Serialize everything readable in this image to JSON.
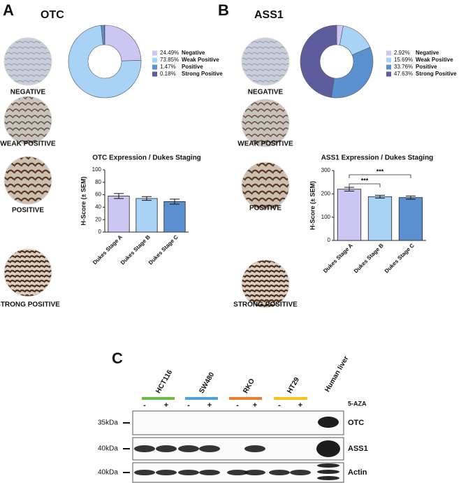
{
  "panels": [
    {
      "label": "A",
      "title": "OTC",
      "tissue_labels": [
        "NEGATIVE",
        "WEAK POSITIVE",
        "POSITIVE",
        "STRONG POSITIVE"
      ]
    },
    {
      "label": "B",
      "title": "ASS1",
      "tissue_labels": [
        "NEGATIVE",
        "WEAK POSITIVE",
        "POSITIVE",
        "STRONG POSITIVE"
      ]
    }
  ],
  "chart_data": [
    {
      "type": "pie",
      "categories": [
        "Negative",
        "Weak Positive",
        "Positive",
        "Strong Positive"
      ],
      "values": [
        24.49,
        73.85,
        1.47,
        0.18
      ],
      "value_labels": [
        "24.49%",
        "73.85%",
        "1.47%",
        "0.18%"
      ],
      "colors": [
        "#cbc7f2",
        "#a8d3f7",
        "#5b90d0",
        "#5d5c9c"
      ]
    },
    {
      "type": "bar",
      "title": "OTC Expression / Dukes Staging",
      "y_label": "H-Score (± SEM)",
      "categories": [
        "Dukes Stage A",
        "Dukes Stage B",
        "Dukes Stage C"
      ],
      "values": [
        58,
        54,
        49
      ],
      "errors": [
        4,
        3,
        4
      ],
      "colors": [
        "#cbc7f2",
        "#a8d3f7",
        "#5b90d0"
      ],
      "ylim": [
        0,
        100
      ],
      "yticks": [
        0,
        20,
        40,
        60,
        80,
        100
      ]
    },
    {
      "type": "pie",
      "categories": [
        "Negative",
        "Weak Positive",
        "Positive",
        "Strong Positive"
      ],
      "values": [
        2.92,
        15.69,
        33.76,
        47.63
      ],
      "value_labels": [
        "2.92%",
        "15.69%",
        "33.76%",
        "47.63%"
      ],
      "colors": [
        "#cbc7f2",
        "#a8d3f7",
        "#5b90d0",
        "#5d5c9c"
      ]
    },
    {
      "type": "bar",
      "title": "ASS1 Expression / Dukes Staging",
      "y_label": "H-Score (± SEM)",
      "categories": [
        "Dukes Stage A",
        "Dukes Stage B",
        "Dukes Stage C"
      ],
      "values": [
        220,
        188,
        184
      ],
      "errors": [
        8,
        6,
        7
      ],
      "colors": [
        "#cbc7f2",
        "#a8d3f7",
        "#5b90d0"
      ],
      "ylim": [
        0,
        300
      ],
      "yticks": [
        0,
        100,
        200,
        300
      ],
      "annotations": [
        "***",
        "***"
      ]
    }
  ],
  "blot": {
    "label": "C",
    "cell_lines": [
      "HCT116",
      "SW480",
      "RKO",
      "HT29",
      "Human liver"
    ],
    "treatments": [
      "-",
      "+",
      "-",
      "+",
      "-",
      "+",
      "-",
      "+"
    ],
    "treatment_label": "5-AZA",
    "markers": [
      "35kDa",
      "40kDa",
      "40kDa"
    ],
    "proteins": [
      "OTC",
      "ASS1",
      "Actin"
    ]
  }
}
